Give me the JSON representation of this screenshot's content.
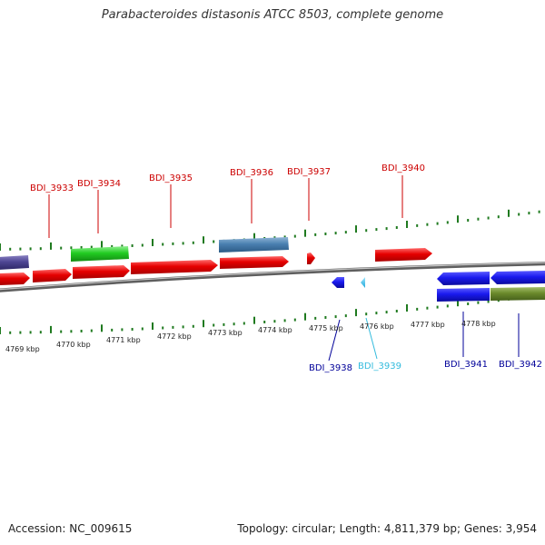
{
  "title": "Parabacteroides distasonis ATCC 8503, complete genome",
  "footer": {
    "accession": "Accession: NC_009615",
    "stats": "Topology: circular; Length: 4,811,379 bp; Genes: 3,954"
  },
  "colors": {
    "forward_gene": "#e60000",
    "reverse_gene": "#1a1aee",
    "top_label": "#cc0000",
    "bottom_label": "#000099",
    "highlight_label": "#33bbdd",
    "ruler": "#1f7a1f",
    "backbone": "#8a8a8a"
  },
  "ruler_labels": [
    "4769 kbp",
    "4770 kbp",
    "4771 kbp",
    "4772 kbp",
    "4773 kbp",
    "4774 kbp",
    "4775 kbp",
    "4776 kbp",
    "4777 kbp",
    "4778 kbp"
  ],
  "top_genes": [
    {
      "label": "BDI_3933",
      "color": "#cc0000"
    },
    {
      "label": "BDI_3934",
      "color": "#cc0000"
    },
    {
      "label": "BDI_3935",
      "color": "#cc0000"
    },
    {
      "label": "BDI_3936",
      "color": "#cc0000"
    },
    {
      "label": "BDI_3937",
      "color": "#cc0000"
    },
    {
      "label": "BDI_3940",
      "color": "#cc0000"
    }
  ],
  "bottom_genes": [
    {
      "label": "BDI_3938",
      "color": "#000099"
    },
    {
      "label": "BDI_3939",
      "color": "#33bbdd"
    },
    {
      "label": "BDI_3941",
      "color": "#000099"
    },
    {
      "label": "BDI_3942",
      "color": "#000099"
    }
  ]
}
